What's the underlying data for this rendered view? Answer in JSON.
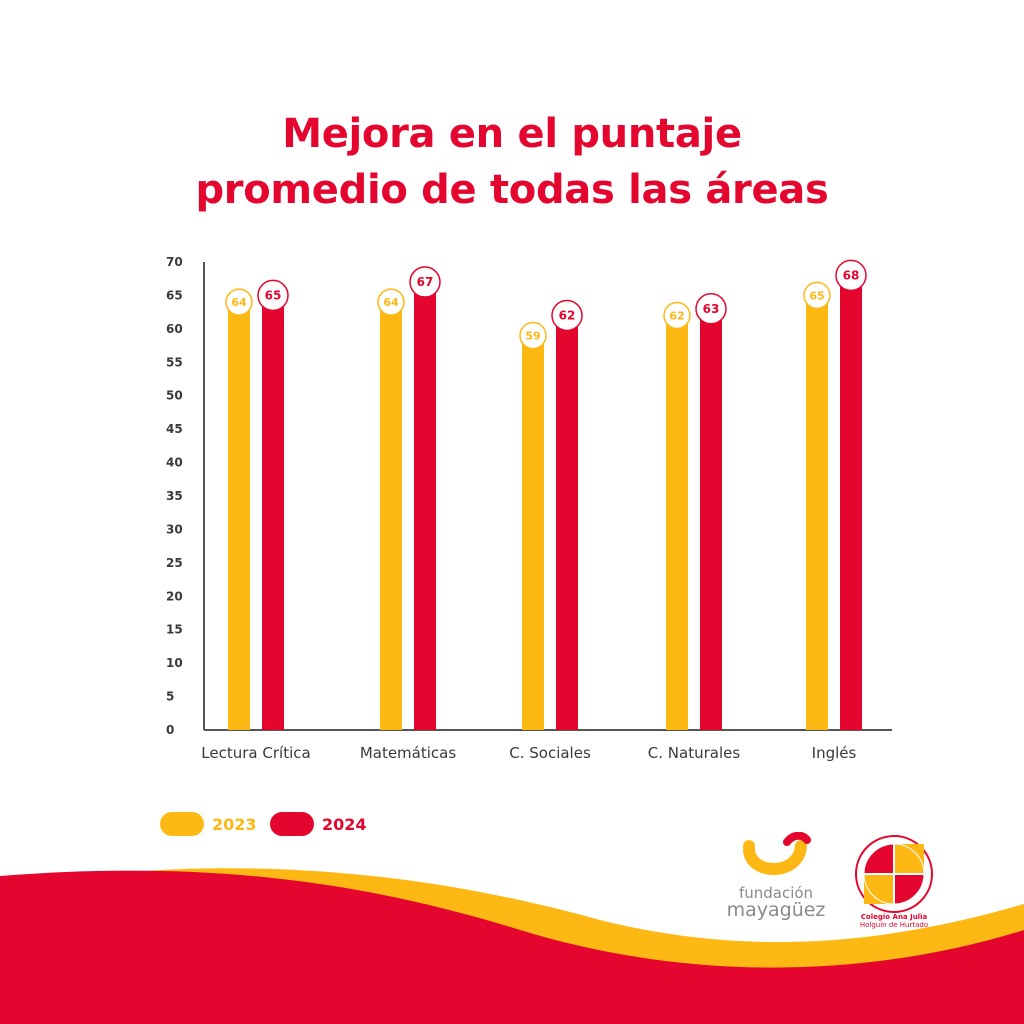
{
  "title": {
    "line1": "Mejora en el puntaje",
    "line2": "promedio de todas las áreas"
  },
  "chart_data": {
    "type": "bar",
    "title": "Mejora en el puntaje promedio de todas las áreas",
    "categories": [
      "Lectura Crítica",
      "Matemáticas",
      "C. Sociales",
      "C. Naturales",
      "Inglés"
    ],
    "series": [
      {
        "name": "2023",
        "values": [
          64,
          64,
          59,
          62,
          65
        ],
        "color": "#fdb813"
      },
      {
        "name": "2024",
        "values": [
          65,
          67,
          62,
          63,
          68
        ],
        "color": "#e4062e"
      }
    ],
    "yticks": [
      0,
      5,
      10,
      15,
      20,
      25,
      30,
      35,
      40,
      45,
      50,
      55,
      60,
      65,
      70
    ],
    "ylim": [
      0,
      70
    ],
    "xlabel": "",
    "ylabel": "",
    "grid": false,
    "legend": "bottom-left"
  },
  "legend": {
    "items": [
      {
        "label": "2023",
        "color": "#fdb813"
      },
      {
        "label": "2024",
        "color": "#e4062e"
      }
    ]
  },
  "brand": {
    "line1": "fundación",
    "line2": "mayagüez",
    "seal_caption1": "Colegio Ana Julia",
    "seal_caption2": "Holguín de Hurtado"
  },
  "colors": {
    "accent": "#e4062e",
    "yellow": "#fdb813",
    "axis": "#555555",
    "text": "#3a3a3a"
  }
}
